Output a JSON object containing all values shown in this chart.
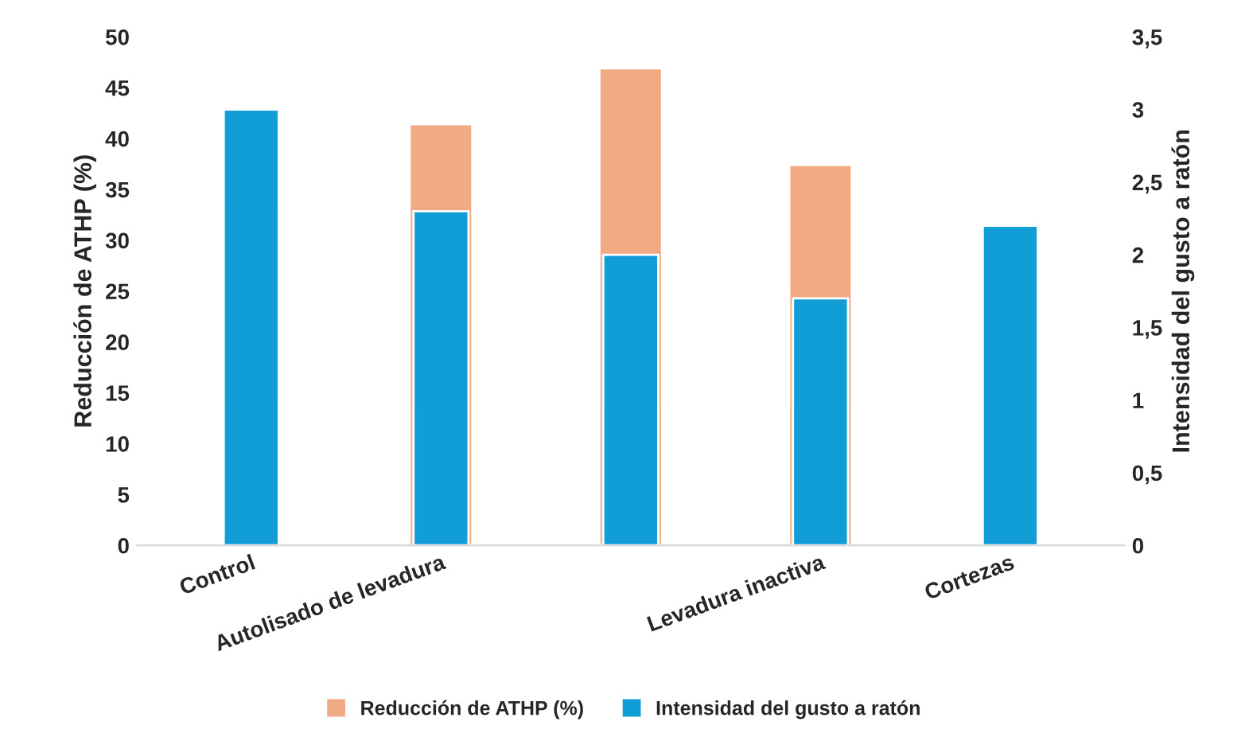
{
  "chart_data": {
    "type": "bar",
    "ylabel": "Reducción de ATHP (%)",
    "y2label": "Intensidad del gusto a ratón",
    "categories": [
      "Control",
      "Autolisado de levadura",
      null,
      "Levadura inactiva",
      "Cortezas"
    ],
    "series": [
      {
        "name": "Reducción de ATHP (%)",
        "color": "#f2aa84",
        "values": [
          null,
          41.4,
          46.9,
          37.4,
          null
        ]
      },
      {
        "name": "Intensidad del gusto a ratón",
        "color": "#119ed6",
        "axis": "y2",
        "values": [
          3.0,
          2.3,
          2.0,
          1.7,
          2.2
        ]
      }
    ],
    "ylim": [
      0,
      50
    ],
    "yticks": [
      0,
      5,
      10,
      15,
      20,
      25,
      30,
      35,
      40,
      45,
      50
    ],
    "y2lim": [
      0,
      3.5
    ],
    "y2ticks": [
      {
        "value": 0,
        "label": "0"
      },
      {
        "value": 0.5,
        "label": "0,5"
      },
      {
        "value": 1,
        "label": "1"
      },
      {
        "value": 1.5,
        "label": "1,5"
      },
      {
        "value": 2,
        "label": "2"
      },
      {
        "value": 2.5,
        "label": "2,5"
      },
      {
        "value": 3,
        "label": "3"
      },
      {
        "value": 3.5,
        "label": "3,5"
      }
    ],
    "grid": false,
    "legend": "bottom"
  }
}
